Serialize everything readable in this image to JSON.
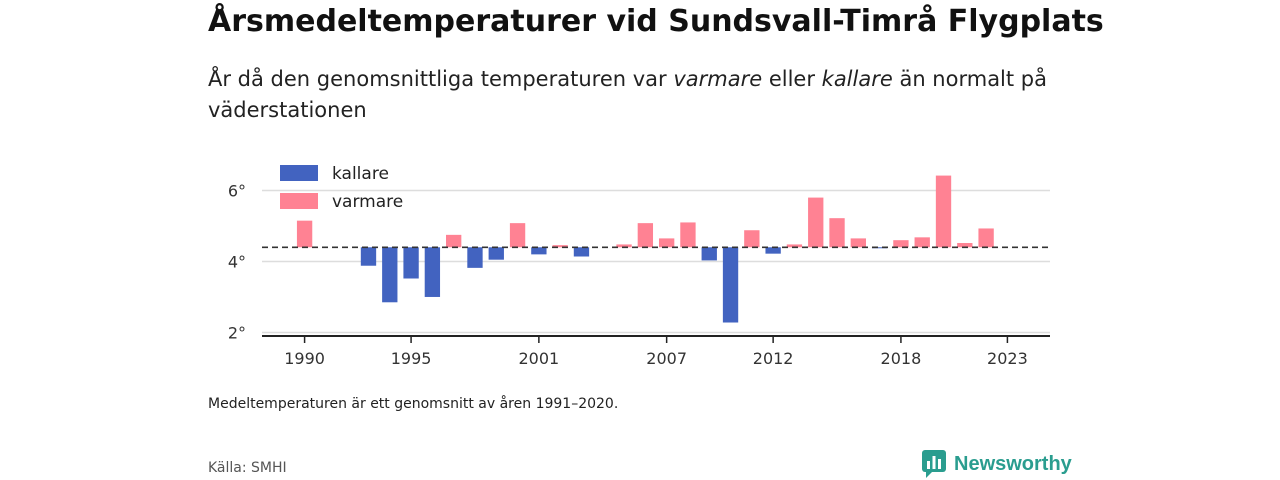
{
  "header": {
    "title": "Årsmedeltemperaturer vid Sundsvall-Timrå Flygplats",
    "subtitle_pre": "År då den genomsnittliga temperaturen var ",
    "subtitle_warm": "varmare",
    "subtitle_mid": " eller ",
    "subtitle_cold": "kallare",
    "subtitle_post": " än normalt på väderstationen"
  },
  "footer": {
    "note": "Medeltemperaturen är ett genomsnitt av åren 1991–2020.",
    "source": "Källa: SMHI",
    "brand": "Newsworthy"
  },
  "colors": {
    "colder": "#4263c0",
    "warmer": "#ff8293",
    "grid": "#dddddd",
    "baseline": "#333333",
    "brand": "#2a9d8f"
  },
  "chart_data": {
    "type": "bar",
    "baseline": 4.4,
    "ylim": [
      1.9,
      7.0
    ],
    "yticks": [
      2,
      4,
      6
    ],
    "ytick_labels": [
      "2°",
      "4°",
      "6°"
    ],
    "xticks": [
      1990,
      1995,
      2001,
      2007,
      2012,
      2018,
      2023
    ],
    "xtick_labels": [
      "1990",
      "1995",
      "2001",
      "2007",
      "2012",
      "2018",
      "2023"
    ],
    "xlim": [
      1988,
      2025
    ],
    "legend": {
      "position": "top-left",
      "entries": [
        {
          "key": "colder",
          "label": "kallare"
        },
        {
          "key": "warmer",
          "label": "varmare"
        }
      ]
    },
    "years": [
      1990,
      1993,
      1994,
      1995,
      1996,
      1997,
      1998,
      1999,
      2000,
      2001,
      2002,
      2003,
      2005,
      2006,
      2007,
      2008,
      2009,
      2010,
      2011,
      2012,
      2013,
      2014,
      2015,
      2016,
      2017,
      2018,
      2019,
      2020,
      2021,
      2022
    ],
    "values": [
      5.15,
      3.88,
      2.85,
      3.52,
      3.0,
      4.75,
      3.82,
      4.05,
      5.08,
      4.2,
      4.46,
      4.14,
      4.48,
      5.08,
      4.65,
      5.1,
      4.03,
      2.28,
      4.88,
      4.22,
      4.48,
      5.8,
      5.22,
      4.65,
      4.38,
      4.6,
      4.68,
      6.42,
      4.52,
      4.93
    ]
  }
}
